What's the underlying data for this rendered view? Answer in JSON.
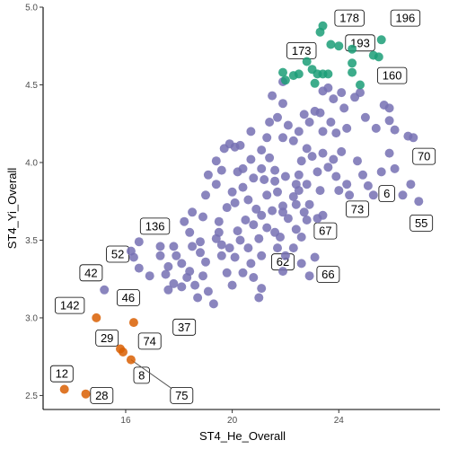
{
  "chart_data": {
    "type": "scatter",
    "xlabel": "ST4_He_Overall",
    "ylabel": "ST4_Yi_Overall",
    "xlim": [
      12.9,
      27.8
    ],
    "ylim": [
      2.41,
      5.0
    ],
    "x_ticks": [
      16,
      20,
      24
    ],
    "y_ticks": [
      2.5,
      3.0,
      3.5,
      4.0,
      4.5,
      5.0
    ],
    "x_tick_labels": [
      "16",
      "20",
      "24"
    ],
    "y_tick_labels": [
      "2.5",
      "3.0",
      "3.5",
      "4.0",
      "4.5",
      "5.0"
    ],
    "grid": false,
    "colors": {
      "purple": "#7570b3",
      "green": "#1b9e77",
      "orange": "#d95f02"
    },
    "series": [
      {
        "color_key": "purple",
        "points": [
          [
            15.2,
            3.18
          ],
          [
            16.3,
            3.39
          ],
          [
            16.5,
            3.49
          ],
          [
            16.2,
            3.43
          ],
          [
            16.5,
            3.32
          ],
          [
            16.9,
            3.27
          ],
          [
            17.3,
            3.46
          ],
          [
            17.3,
            3.4
          ],
          [
            17.6,
            3.33
          ],
          [
            17.5,
            3.28
          ],
          [
            17.8,
            3.22
          ],
          [
            17.6,
            3.18
          ],
          [
            17.9,
            3.4
          ],
          [
            18.1,
            3.35
          ],
          [
            18.3,
            3.26
          ],
          [
            18.1,
            3.2
          ],
          [
            18.5,
            3.46
          ],
          [
            18.4,
            3.3
          ],
          [
            18.6,
            3.21
          ],
          [
            18.8,
            3.42
          ],
          [
            19.0,
            3.36
          ],
          [
            18.9,
            3.27
          ],
          [
            19.1,
            3.17
          ],
          [
            19.3,
            3.09
          ],
          [
            18.7,
            3.13
          ],
          [
            19.6,
            3.4
          ],
          [
            19.8,
            3.29
          ],
          [
            20.0,
            3.21
          ],
          [
            19.4,
            3.51
          ],
          [
            19.6,
            3.47
          ],
          [
            19.9,
            3.45
          ],
          [
            19.5,
            3.62
          ],
          [
            18.9,
            3.65
          ],
          [
            18.5,
            3.68
          ],
          [
            18.2,
            3.62
          ],
          [
            19.8,
            3.71
          ],
          [
            20.2,
            3.56
          ],
          [
            20.1,
            3.39
          ],
          [
            20.4,
            3.29
          ],
          [
            20.6,
            3.45
          ],
          [
            20.7,
            3.35
          ],
          [
            20.8,
            3.6
          ],
          [
            21.0,
            3.51
          ],
          [
            21.1,
            3.4
          ],
          [
            21.3,
            3.58
          ],
          [
            21.5,
            3.69
          ],
          [
            21.6,
            3.55
          ],
          [
            21.7,
            3.45
          ],
          [
            21.1,
            3.19
          ],
          [
            21.0,
            3.13
          ],
          [
            20.8,
            3.26
          ],
          [
            20.9,
            3.7
          ],
          [
            21.1,
            3.66
          ],
          [
            21.3,
            3.79
          ],
          [
            21.6,
            3.88
          ],
          [
            21.7,
            3.81
          ],
          [
            21.9,
            3.72
          ],
          [
            22.0,
            3.91
          ],
          [
            22.1,
            3.64
          ],
          [
            21.8,
            3.52
          ],
          [
            22.3,
            3.78
          ],
          [
            22.4,
            3.86
          ],
          [
            22.5,
            3.92
          ],
          [
            22.6,
            4.01
          ],
          [
            22.8,
            3.86
          ],
          [
            22.9,
            3.73
          ],
          [
            23.0,
            4.04
          ],
          [
            23.2,
            3.94
          ],
          [
            23.3,
            3.82
          ],
          [
            23.4,
            4.06
          ],
          [
            23.6,
            3.97
          ],
          [
            23.8,
            4.02
          ],
          [
            23.9,
            3.91
          ],
          [
            24.0,
            3.82
          ],
          [
            24.1,
            4.07
          ],
          [
            24.3,
            3.86
          ],
          [
            24.4,
            3.79
          ],
          [
            24.7,
            4.01
          ],
          [
            24.9,
            3.92
          ],
          [
            25.1,
            3.85
          ],
          [
            25.3,
            3.79
          ],
          [
            25.6,
            3.94
          ],
          [
            25.9,
            4.06
          ],
          [
            26.1,
            3.96
          ],
          [
            26.4,
            3.79
          ],
          [
            26.7,
            3.86
          ],
          [
            27.0,
            3.75
          ],
          [
            26.8,
            4.16
          ],
          [
            26.6,
            4.17
          ],
          [
            26.1,
            4.21
          ],
          [
            25.9,
            4.27
          ],
          [
            25.7,
            4.37
          ],
          [
            25.9,
            4.35
          ],
          [
            23.9,
            4.19
          ],
          [
            23.7,
            4.26
          ],
          [
            23.4,
            4.2
          ],
          [
            23.3,
            4.32
          ],
          [
            23.1,
            4.33
          ],
          [
            22.9,
            4.26
          ],
          [
            22.7,
            4.31
          ],
          [
            22.5,
            4.2
          ],
          [
            22.3,
            4.14
          ],
          [
            22.1,
            4.24
          ],
          [
            21.9,
            4.16
          ],
          [
            21.7,
            4.29
          ],
          [
            21.4,
            4.26
          ],
          [
            21.1,
            4.08
          ],
          [
            20.7,
            4.02
          ],
          [
            20.4,
            3.96
          ],
          [
            20.3,
            4.11
          ],
          [
            20.1,
            4.1
          ],
          [
            19.9,
            4.12
          ],
          [
            19.7,
            4.09
          ],
          [
            19.4,
            4.01
          ],
          [
            19.1,
            3.92
          ],
          [
            19.0,
            3.79
          ],
          [
            20.4,
            3.84
          ],
          [
            20.6,
            3.76
          ],
          [
            20.1,
            3.74
          ],
          [
            20.0,
            3.81
          ],
          [
            21.1,
            3.96
          ],
          [
            20.8,
            3.9
          ],
          [
            23.4,
            4.46
          ],
          [
            23.6,
            4.48
          ],
          [
            23.8,
            4.41
          ],
          [
            24.1,
            4.45
          ],
          [
            24.2,
            4.35
          ],
          [
            24.3,
            4.22
          ],
          [
            24.6,
            4.42
          ],
          [
            24.8,
            4.45
          ],
          [
            25.0,
            4.29
          ],
          [
            25.4,
            4.22
          ],
          [
            21.9,
            4.52
          ],
          [
            21.5,
            4.43
          ],
          [
            21.9,
            4.38
          ],
          [
            22.0,
            3.4
          ],
          [
            22.3,
            3.45
          ],
          [
            22.4,
            3.57
          ],
          [
            22.6,
            3.52
          ],
          [
            22.8,
            3.63
          ],
          [
            23.2,
            3.64
          ],
          [
            23.4,
            3.66
          ],
          [
            23.1,
            3.39
          ],
          [
            22.9,
            3.27
          ],
          [
            22.6,
            3.35
          ],
          [
            22.4,
            3.73
          ],
          [
            21.4,
            4.03
          ],
          [
            21.6,
            3.95
          ],
          [
            21.2,
            3.89
          ],
          [
            20.5,
            3.63
          ],
          [
            20.3,
            3.5
          ],
          [
            19.4,
            3.86
          ],
          [
            19.5,
            3.55
          ],
          [
            18.8,
            3.49
          ],
          [
            21.9,
            3.3
          ],
          [
            22.5,
            3.82
          ],
          [
            22.7,
            3.68
          ],
          [
            19.6,
            3.95
          ],
          [
            18.4,
            3.55
          ],
          [
            17.8,
            3.46
          ],
          [
            20.2,
            3.94
          ],
          [
            21.9,
            3.68
          ],
          [
            20.7,
            4.2
          ],
          [
            21.3,
            4.16
          ],
          [
            22.8,
            4.09
          ]
        ]
      },
      {
        "color_key": "green",
        "points": [
          [
            21.9,
            4.58
          ],
          [
            22.0,
            4.53
          ],
          [
            22.3,
            4.56
          ],
          [
            22.5,
            4.57
          ],
          [
            22.8,
            4.65
          ],
          [
            23.0,
            4.6
          ],
          [
            23.1,
            4.51
          ],
          [
            23.2,
            4.57
          ],
          [
            23.4,
            4.57
          ],
          [
            23.6,
            4.57
          ],
          [
            23.7,
            4.76
          ],
          [
            23.3,
            4.84
          ],
          [
            23.4,
            4.88
          ],
          [
            24.0,
            4.75
          ],
          [
            24.5,
            4.58
          ],
          [
            24.5,
            4.64
          ],
          [
            24.5,
            4.73
          ],
          [
            24.8,
            4.5
          ],
          [
            25.3,
            4.69
          ],
          [
            25.5,
            4.68
          ],
          [
            25.6,
            4.79
          ]
        ]
      },
      {
        "color_key": "orange",
        "points": [
          [
            13.7,
            2.54
          ],
          [
            14.5,
            2.51
          ],
          [
            14.9,
            3.0
          ],
          [
            15.8,
            2.8
          ],
          [
            15.9,
            2.78
          ],
          [
            16.2,
            2.73
          ],
          [
            16.3,
            2.97
          ]
        ]
      }
    ],
    "labels": [
      {
        "text": "178",
        "x": 23.5,
        "y": 4.88,
        "lx": 24.4,
        "ly": 4.93
      },
      {
        "text": "196",
        "x": 25.6,
        "y": 4.79,
        "lx": 26.5,
        "ly": 4.93
      },
      {
        "text": "173",
        "x": 23.2,
        "y": 4.75,
        "lx": 22.6,
        "ly": 4.72
      },
      {
        "text": "193",
        "x": 24.5,
        "y": 4.73,
        "lx": 24.8,
        "ly": 4.77
      },
      {
        "text": "160",
        "x": 25.4,
        "y": 4.58,
        "lx": 26.0,
        "ly": 4.56
      },
      {
        "text": "70",
        "x": 27.0,
        "y": 4.16,
        "lx": 27.2,
        "ly": 4.04
      },
      {
        "text": "6",
        "x": 26.1,
        "y": 3.79,
        "lx": 25.8,
        "ly": 3.8
      },
      {
        "text": "73",
        "x": 25.1,
        "y": 3.79,
        "lx": 24.7,
        "ly": 3.7
      },
      {
        "text": "55",
        "x": 26.7,
        "y": 3.75,
        "lx": 27.1,
        "ly": 3.61
      },
      {
        "text": "67",
        "x": 23.4,
        "y": 3.66,
        "lx": 23.5,
        "ly": 3.56
      },
      {
        "text": "62",
        "x": 21.9,
        "y": 3.3,
        "lx": 21.9,
        "ly": 3.36
      },
      {
        "text": "66",
        "x": 23.1,
        "y": 3.39,
        "lx": 23.6,
        "ly": 3.28
      },
      {
        "text": "136",
        "x": 16.5,
        "y": 3.49,
        "lx": 17.1,
        "ly": 3.59
      },
      {
        "text": "52",
        "x": 16.3,
        "y": 3.39,
        "lx": 15.7,
        "ly": 3.41
      },
      {
        "text": "42",
        "x": 15.2,
        "y": 3.18,
        "lx": 14.7,
        "ly": 3.29
      },
      {
        "text": "46",
        "x": 16.5,
        "y": 3.18,
        "lx": 16.1,
        "ly": 3.13
      },
      {
        "text": "142",
        "x": 14.9,
        "y": 3.0,
        "lx": 13.9,
        "ly": 3.08
      },
      {
        "text": "37",
        "x": 18.1,
        "y": 3.09,
        "lx": 18.2,
        "ly": 2.94
      },
      {
        "text": "29",
        "x": 15.9,
        "y": 2.8,
        "lx": 15.3,
        "ly": 2.87
      },
      {
        "text": "74",
        "x": 16.3,
        "y": 2.9,
        "lx": 16.9,
        "ly": 2.85
      },
      {
        "text": "8",
        "x": 16.2,
        "y": 2.73,
        "lx": 16.6,
        "ly": 2.63
      },
      {
        "text": "12",
        "x": 13.7,
        "y": 2.54,
        "lx": 13.6,
        "ly": 2.64
      },
      {
        "text": "28",
        "x": 14.5,
        "y": 2.51,
        "lx": 15.1,
        "ly": 2.5
      },
      {
        "text": "75",
        "x": 16.2,
        "y": 2.73,
        "lx": 18.1,
        "ly": 2.5,
        "leader": true
      }
    ]
  }
}
